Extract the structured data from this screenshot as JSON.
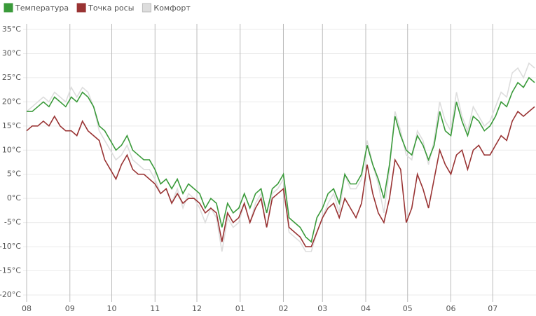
{
  "chart_data": {
    "type": "line",
    "x": [
      0,
      4,
      8,
      12,
      16,
      20,
      24,
      28,
      32,
      36,
      40,
      44,
      48,
      52,
      56,
      60,
      64,
      68,
      72,
      76,
      80,
      84,
      88,
      92,
      96,
      100,
      104,
      108,
      112,
      116,
      120,
      124,
      128,
      132,
      136,
      140,
      144,
      148,
      152,
      156,
      160,
      164,
      168,
      172,
      176,
      180,
      184,
      188,
      192,
      196,
      200,
      204,
      208,
      212,
      216,
      220,
      224,
      228,
      232,
      236,
      240,
      244,
      248,
      252,
      256,
      260,
      264,
      268,
      272,
      276,
      280,
      284,
      288,
      292,
      296,
      300,
      304,
      308,
      312,
      316,
      320,
      324,
      328,
      332,
      336,
      340,
      344,
      348,
      352,
      356,
      360,
      364
    ],
    "series": [
      {
        "name": "Температура",
        "color": "#3a9a3a",
        "values": [
          18,
          18,
          19,
          20,
          19,
          21,
          20,
          19,
          21,
          20,
          22,
          21,
          19,
          15,
          14,
          12,
          10,
          11,
          13,
          10,
          9,
          8,
          8,
          6,
          3,
          4,
          2,
          4,
          1,
          3,
          2,
          1,
          -2,
          0,
          -1,
          -6,
          -1,
          -3,
          -2,
          1,
          -2,
          1,
          2,
          -3,
          2,
          3,
          5,
          -4,
          -5,
          -6,
          -8,
          -9,
          -4,
          -2,
          1,
          2,
          -1,
          5,
          3,
          3,
          5,
          11,
          7,
          4,
          0,
          7,
          17,
          13,
          10,
          9,
          13,
          11,
          8,
          11,
          18,
          14,
          13,
          20,
          16,
          13,
          17,
          16,
          14,
          15,
          17,
          20,
          19,
          22,
          24,
          23,
          25,
          24
        ]
      },
      {
        "name": "Точка росы",
        "color": "#993333",
        "values": [
          14,
          15,
          15,
          16,
          15,
          17,
          15,
          14,
          14,
          13,
          16,
          14,
          13,
          12,
          8,
          6,
          4,
          7,
          9,
          6,
          5,
          5,
          4,
          3,
          1,
          2,
          -1,
          1,
          -1,
          0,
          0,
          -1,
          -3,
          -2,
          -3,
          -9,
          -3,
          -5,
          -4,
          -1,
          -5,
          -2,
          0,
          -6,
          0,
          1,
          2,
          -6,
          -7,
          -8,
          -10,
          -10,
          -7,
          -4,
          -2,
          -1,
          -4,
          0,
          -2,
          -4,
          -1,
          7,
          1,
          -3,
          -5,
          0,
          8,
          6,
          -5,
          -2,
          5,
          2,
          -2,
          4,
          10,
          7,
          5,
          9,
          10,
          6,
          10,
          11,
          9,
          9,
          11,
          13,
          12,
          16,
          18,
          17,
          18,
          19
        ]
      },
      {
        "name": "Комфорт",
        "color": "#dddddd",
        "values": [
          18,
          19,
          20,
          21,
          20,
          22,
          21,
          20,
          23,
          21,
          23,
          22,
          19,
          14,
          12,
          10,
          8,
          9,
          11,
          8,
          7,
          6,
          6,
          4,
          1,
          2,
          -1,
          2,
          -2,
          1,
          0,
          -2,
          -5,
          -2,
          -4,
          -11,
          -4,
          -6,
          -5,
          -1,
          -5,
          -1,
          1,
          -6,
          1,
          2,
          4,
          -7,
          -8,
          -9,
          -11,
          -11,
          -7,
          -4,
          -1,
          1,
          -3,
          5,
          2,
          2,
          4,
          12,
          7,
          3,
          -3,
          6,
          18,
          14,
          9,
          8,
          14,
          12,
          7,
          12,
          20,
          16,
          14,
          22,
          17,
          14,
          19,
          17,
          15,
          16,
          19,
          22,
          21,
          26,
          27,
          25,
          28,
          27
        ]
      }
    ],
    "xlim": [
      0,
      365
    ],
    "xticks": [
      {
        "value": 0,
        "label": "08"
      },
      {
        "value": 31,
        "label": "09"
      },
      {
        "value": 61,
        "label": "10"
      },
      {
        "value": 92,
        "label": "11"
      },
      {
        "value": 122,
        "label": "12"
      },
      {
        "value": 153,
        "label": "01"
      },
      {
        "value": 184,
        "label": "02"
      },
      {
        "value": 212,
        "label": "03"
      },
      {
        "value": 243,
        "label": "04"
      },
      {
        "value": 273,
        "label": "05"
      },
      {
        "value": 304,
        "label": "06"
      },
      {
        "value": 334,
        "label": "07"
      }
    ],
    "ylim": [
      -20,
      35
    ],
    "yticks": [
      {
        "value": -20,
        "label": "-20°C"
      },
      {
        "value": -15,
        "label": "-15°C"
      },
      {
        "value": -10,
        "label": "-10°C"
      },
      {
        "value": -5,
        "label": "-5°C"
      },
      {
        "value": 0,
        "label": "0°C"
      },
      {
        "value": 5,
        "label": "5°C"
      },
      {
        "value": 10,
        "label": "10°C"
      },
      {
        "value": 15,
        "label": "15°C"
      },
      {
        "value": 20,
        "label": "20°C"
      },
      {
        "value": 25,
        "label": "25°C"
      },
      {
        "value": 30,
        "label": "30°C"
      },
      {
        "value": 35,
        "label": "35°C"
      }
    ],
    "grid": true,
    "legend": "top-left"
  }
}
